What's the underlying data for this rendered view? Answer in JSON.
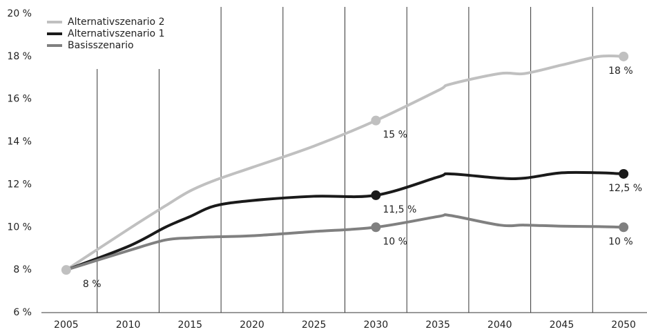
{
  "chart_data": {
    "type": "line",
    "x": [
      2005,
      2010,
      2013,
      2015,
      2017,
      2020,
      2025,
      2030,
      2035,
      2036,
      2040,
      2042,
      2045,
      2048,
      2050
    ],
    "xlim": [
      2003,
      2052
    ],
    "xticks": [
      2005,
      2010,
      2015,
      2020,
      2025,
      2030,
      2035,
      2040,
      2045,
      2050
    ],
    "x_separators": [
      2007.5,
      2012.5,
      2017.5,
      2022.5,
      2027.5,
      2032.5,
      2037.5,
      2042.5,
      2047.5
    ],
    "ylim": [
      6,
      20
    ],
    "yticks": [
      {
        "value": 6,
        "label": "6 %"
      },
      {
        "value": 8,
        "label": "8 %"
      },
      {
        "value": 10,
        "label": "10 %"
      },
      {
        "value": 12,
        "label": "12 %"
      },
      {
        "value": 14,
        "label": "14 %"
      },
      {
        "value": 16,
        "label": "16 %"
      },
      {
        "value": 18,
        "label": "18 %"
      },
      {
        "value": 20,
        "label": "20 %"
      }
    ],
    "legend": "top-left",
    "series": [
      {
        "name": "Alternativszenario 2",
        "color": "#c0c0c0",
        "values": [
          8,
          9.9,
          11,
          11.7,
          12.2,
          12.8,
          13.8,
          15,
          16.4,
          16.7,
          17.2,
          17.2,
          17.6,
          18,
          18
        ],
        "value_labels": [
          "8 %",
          null,
          null,
          null,
          null,
          null,
          null,
          "15 %",
          null,
          null,
          null,
          null,
          null,
          null,
          "18 %"
        ]
      },
      {
        "name": "Alternativszenario 1",
        "color": "#1a1a1a",
        "values": [
          8,
          9.1,
          10,
          10.5,
          11,
          11.25,
          11.45,
          11.5,
          12.35,
          12.5,
          12.3,
          12.3,
          12.55,
          12.55,
          12.5
        ],
        "value_labels": [
          null,
          null,
          null,
          null,
          null,
          null,
          null,
          "11,5 %",
          null,
          null,
          null,
          null,
          null,
          null,
          "12,5 %"
        ]
      },
      {
        "name": "Basisszenario",
        "color": "#808080",
        "values": [
          8,
          8.9,
          9.4,
          9.5,
          9.55,
          9.6,
          9.8,
          10,
          10.5,
          10.55,
          10.1,
          10.1,
          10.05,
          10.03,
          10
        ],
        "value_labels": [
          null,
          null,
          null,
          null,
          null,
          null,
          null,
          "10 %",
          null,
          null,
          null,
          null,
          null,
          null,
          "10 %"
        ]
      }
    ]
  }
}
